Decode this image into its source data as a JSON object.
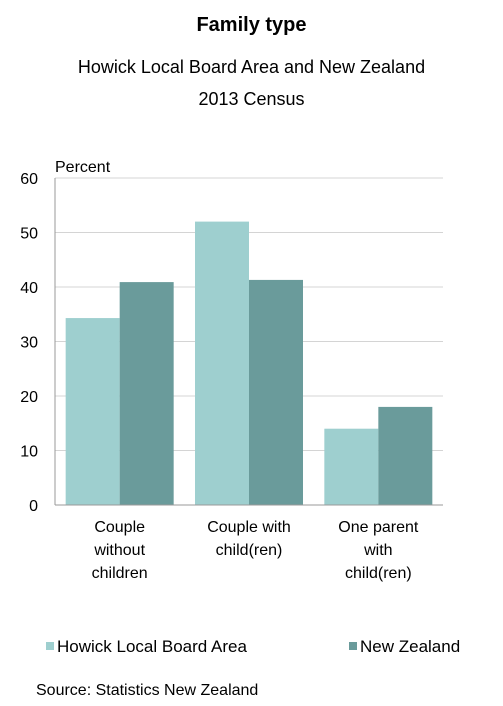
{
  "chart_data": {
    "type": "bar",
    "title": "Family type",
    "subtitle_lines": [
      "Howick Local Board Area and New Zealand",
      "2013 Census"
    ],
    "ylabel": "Percent",
    "ylim": [
      0,
      60
    ],
    "yticks": [
      0,
      10,
      20,
      30,
      40,
      50,
      60
    ],
    "grid": true,
    "categories": [
      [
        "Couple",
        "without",
        "children"
      ],
      [
        "Couple with",
        "child(ren)"
      ],
      [
        "One parent",
        "with",
        "child(ren)"
      ]
    ],
    "series": [
      {
        "name": "Howick Local Board Area",
        "color": "#9ecfcf",
        "values": [
          34.3,
          52.0,
          14.0
        ]
      },
      {
        "name": "New Zealand",
        "color": "#6a9b9b",
        "values": [
          40.9,
          41.3,
          18.0
        ]
      }
    ],
    "legend_position": "bottom",
    "source": "Source: Statistics New Zealand"
  }
}
